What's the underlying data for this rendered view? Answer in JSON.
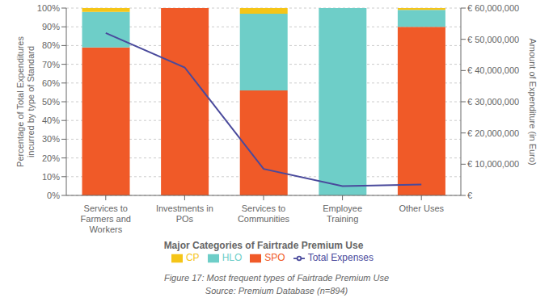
{
  "chart_data": {
    "type": "bar",
    "stacked": true,
    "categories": [
      "Services to\nFarmers and\nWorkers",
      "Investments in\nPOs",
      "Services to\nCommunities",
      "Employee\nTraining",
      "Other Uses"
    ],
    "series": [
      {
        "name": "SPO",
        "color": "#F05A28",
        "values": [
          79,
          100,
          56,
          0,
          90
        ]
      },
      {
        "name": "HLO",
        "color": "#6ECEC8",
        "values": [
          19,
          0,
          41,
          100,
          9
        ]
      },
      {
        "name": "CP",
        "color": "#F5C518",
        "values": [
          2,
          0,
          3,
          0,
          1
        ]
      },
      {
        "name": "Total Expenses",
        "type": "line",
        "axis": "y2",
        "color": "#4A4A9C",
        "values": [
          52000000,
          41000000,
          8500000,
          3000000,
          3500000
        ]
      }
    ],
    "xlabel": "Major Categories of Fairtrade Premium Use",
    "ylabel": "Percentage of Total Expenditures\nincurred by type of Standard",
    "y2label": "Amount of Expenditure (in Euro)",
    "annotations": [
      "Figure 17: Most frequent types of Fairtrade Premium Use",
      "Source: Premium Database (n=894)"
    ],
    "ylim": [
      0,
      100
    ],
    "yticks": [
      {
        "value": 0,
        "label": "0%"
      },
      {
        "value": 10,
        "label": "10%"
      },
      {
        "value": 20,
        "label": "20%"
      },
      {
        "value": 30,
        "label": "30%"
      },
      {
        "value": 40,
        "label": "40%"
      },
      {
        "value": 50,
        "label": "50%"
      },
      {
        "value": 60,
        "label": "60%"
      },
      {
        "value": 70,
        "label": "70%"
      },
      {
        "value": 80,
        "label": "80%"
      },
      {
        "value": 90,
        "label": "90%"
      },
      {
        "value": 100,
        "label": "100%"
      }
    ],
    "y2lim": [
      0,
      60000000
    ],
    "y2ticks": [
      {
        "value": 0,
        "label": "€"
      },
      {
        "value": 10000000,
        "label": "€ 10,000,000"
      },
      {
        "value": 20000000,
        "label": "€ 20,000,000"
      },
      {
        "value": 30000000,
        "label": "€ 30,000,000"
      },
      {
        "value": 40000000,
        "label": "€ 40,000,000"
      },
      {
        "value": 50000000,
        "label": "€ 50,000,000"
      },
      {
        "value": 60000000,
        "label": "€ 60,000,000"
      }
    ],
    "grid": true,
    "legend": "bottom"
  }
}
